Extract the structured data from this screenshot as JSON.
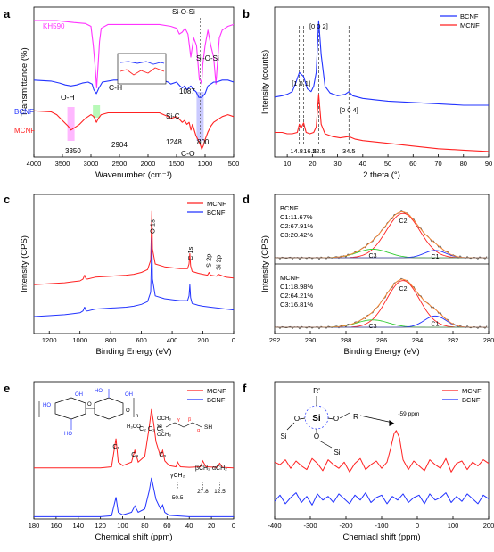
{
  "chart_data": [
    {
      "panel": "a",
      "type": "line",
      "xlabel": "Wavenumber (cm⁻¹)",
      "ylabel": "Transmittance (%)",
      "xlim": [
        4000,
        500
      ],
      "x_ticks": [
        4000,
        3500,
        3000,
        2500,
        2000,
        1500,
        1000,
        500
      ],
      "y_ticks": "none",
      "series": [
        {
          "name": "KH590",
          "color": "#ff33ff",
          "x": [
            4000,
            3600,
            3300,
            3100,
            3000,
            2960,
            2930,
            2900,
            2870,
            2850,
            2820,
            2700,
            2400,
            2100,
            1800,
            1600,
            1500,
            1450,
            1400,
            1350,
            1300,
            1250,
            1200,
            1150,
            1100,
            1080,
            1060,
            1040,
            1000,
            950,
            900,
            850,
            810,
            790,
            750,
            700,
            600,
            500
          ],
          "y": [
            93,
            93,
            92,
            91.5,
            90,
            80,
            70,
            58,
            72,
            82,
            89,
            91,
            91,
            91,
            91,
            90,
            89,
            86,
            87,
            89,
            86,
            74,
            84,
            80,
            62,
            62,
            60,
            70,
            80,
            88,
            80,
            74,
            60,
            68,
            84,
            88,
            90,
            91
          ]
        },
        {
          "name": "BCNF",
          "color": "#2233ff",
          "x": [
            4000,
            3700,
            3550,
            3450,
            3350,
            3250,
            3150,
            3050,
            2980,
            2950,
            2904,
            2860,
            2800,
            2600,
            2300,
            2000,
            1750,
            1650,
            1600,
            1500,
            1440,
            1400,
            1360,
            1320,
            1250,
            1200,
            1160,
            1110,
            1060,
            1030,
            1000,
            950,
            900,
            850,
            800,
            700,
            600,
            500
          ],
          "y": [
            62,
            61.5,
            60.5,
            59.5,
            59,
            59.5,
            60.5,
            61,
            60,
            57,
            55,
            58,
            61,
            62,
            62,
            62,
            62,
            61,
            60,
            61,
            59,
            58,
            59,
            57,
            59,
            57,
            56,
            53,
            53,
            54,
            55,
            59,
            60,
            61,
            61,
            62,
            62,
            61
          ]
        },
        {
          "name": "MCNF",
          "color": "#ff2222",
          "x": [
            4000,
            3700,
            3600,
            3500,
            3400,
            3350,
            3300,
            3200,
            3100,
            3000,
            2950,
            2904,
            2870,
            2820,
            2700,
            2400,
            2100,
            1800,
            1650,
            1600,
            1500,
            1430,
            1400,
            1360,
            1320,
            1280,
            1248,
            1220,
            1200,
            1160,
            1110,
            1080,
            1060,
            1030,
            1000,
            950,
            900,
            850,
            800,
            750,
            700,
            600,
            500
          ],
          "y": [
            46,
            45.5,
            44,
            41,
            38,
            36,
            37,
            39,
            42,
            44,
            43,
            40,
            42,
            44,
            45,
            45,
            45,
            45,
            43,
            42,
            43,
            41,
            40,
            41,
            39,
            40,
            36,
            39,
            37,
            33,
            30,
            28,
            26,
            28,
            31,
            35,
            38,
            40,
            41,
            42,
            43,
            44,
            43
          ]
        }
      ],
      "annotations": [
        "KH590",
        "BCNF",
        "MCNF",
        "O-H",
        "C-H",
        "Si-O-Si",
        "Si-O-Si",
        "Si-C",
        "C-O",
        "3350",
        "2904",
        "1248",
        "1087",
        "800"
      ],
      "legend": "inline labels",
      "highlight_bands": [
        {
          "center": 3350,
          "color": "#ff33ff"
        },
        {
          "center": 2904,
          "color": "#33ee33"
        },
        {
          "center": 1087,
          "color": "#6666ff"
        }
      ],
      "inset": "zoom of 1300-1000 region (BCNF, MCNF)"
    },
    {
      "panel": "b",
      "type": "line",
      "xlabel": "2 theta (°)",
      "ylabel": "Intensity (counts)",
      "xlim": [
        5,
        90
      ],
      "x_ticks": [
        10,
        20,
        30,
        40,
        50,
        60,
        70,
        80,
        90
      ],
      "y_ticks": "none",
      "series": [
        {
          "name": "BCNF",
          "color": "#2233ff",
          "x": [
            5,
            8,
            10,
            12,
            13.5,
            14.8,
            16.5,
            18,
            19.5,
            20.5,
            21.5,
            22.5,
            23.5,
            25,
            27,
            30,
            33,
            34.5,
            36,
            40,
            45,
            50,
            60,
            70,
            80,
            90
          ],
          "y": [
            44,
            45,
            46,
            48,
            55,
            62,
            59,
            50,
            48,
            52,
            62,
            100,
            75,
            52,
            47,
            45,
            46,
            48,
            45,
            43,
            42,
            41,
            40,
            39,
            38,
            38
          ]
        },
        {
          "name": "MCNF",
          "color": "#ff2222",
          "x": [
            5,
            8,
            10,
            12,
            14,
            14.8,
            15.5,
            16.5,
            17.5,
            19,
            20.5,
            21.5,
            22.5,
            23.5,
            25,
            28,
            31,
            34.5,
            37,
            40,
            45,
            50,
            60,
            70,
            80,
            90
          ],
          "y": [
            18,
            18,
            17,
            17,
            18,
            24,
            21,
            25,
            18,
            17,
            18,
            22,
            46,
            24,
            17,
            15,
            14,
            15,
            13,
            12,
            11,
            10,
            8,
            6,
            5,
            4
          ]
        }
      ],
      "annotations": [
        "[1 0 1]",
        "[0 0 2]",
        "[0 0 4]",
        "14.8",
        "16.5",
        "22.5",
        "34.5"
      ],
      "legend": "top-right"
    },
    {
      "panel": "c",
      "type": "line",
      "xlabel": "Binding Energy (eV)",
      "ylabel": "Intensity (CPS)",
      "xlim": [
        1300,
        0
      ],
      "x_ticks": [
        1200,
        1000,
        800,
        600,
        400,
        200,
        0
      ],
      "y_ticks": "none",
      "series": [
        {
          "name": "MCNF",
          "color": "#ff2222",
          "x": [
            1300,
            1200,
            1100,
            1050,
            1000,
            980,
            970,
            960,
            950,
            900,
            800,
            700,
            650,
            600,
            560,
            540,
            532,
            528,
            510,
            450,
            400,
            350,
            300,
            290,
            285,
            280,
            270,
            230,
            200,
            170,
            160,
            150,
            110,
            100,
            50,
            0
          ],
          "y": [
            22,
            23,
            24,
            25,
            26,
            28,
            32,
            28,
            28,
            30,
            31,
            32,
            33,
            35,
            38,
            48,
            100,
            60,
            44,
            41,
            40,
            39,
            39,
            44,
            55,
            42,
            36,
            34,
            33,
            32,
            35,
            32,
            31,
            33,
            30,
            29
          ]
        },
        {
          "name": "BCNF",
          "color": "#2233ff",
          "x": [
            1300,
            1200,
            1100,
            1050,
            1000,
            980,
            970,
            960,
            950,
            900,
            800,
            700,
            650,
            600,
            560,
            540,
            532,
            528,
            510,
            450,
            400,
            350,
            300,
            290,
            285,
            280,
            270,
            230,
            200,
            150,
            100,
            50,
            0
          ],
          "y": [
            -12,
            -11,
            -10,
            -9,
            -8,
            -6,
            -2,
            -6,
            -6,
            -4,
            -3,
            -2,
            -1,
            1,
            4,
            14,
            72,
            28,
            10,
            7,
            6,
            5,
            5,
            10,
            22,
            8,
            2,
            0,
            -1,
            -2,
            -3,
            -4,
            -5
          ]
        }
      ],
      "annotations": [
        "O 1s",
        "C 1s",
        "S 2p",
        "Si 2p"
      ],
      "legend": "top-right"
    },
    {
      "panel": "d",
      "type": "line",
      "xlabel": "Binding Energy (eV)",
      "ylabel": "Intensity (CPS)",
      "xlim": [
        292,
        280
      ],
      "x_ticks": [
        292,
        290,
        288,
        286,
        284,
        282,
        280
      ],
      "y_ticks": "none",
      "subpanels": [
        {
          "sample": "BCNF",
          "text": [
            "BCNF",
            "C1:11.67%",
            "C2:67.91%",
            "C3:20.42%"
          ],
          "components": [
            {
              "label": "C2",
              "center": 284.8,
              "height": 0.78,
              "width": 1.4,
              "color": "#ff2222"
            },
            {
              "label": "C3",
              "center": 286.5,
              "height": 0.15,
              "width": 1.3,
              "color": "#33cc33"
            },
            {
              "label": "C1",
              "center": 283.0,
              "height": 0.13,
              "width": 0.9,
              "color": "#2233ff"
            }
          ]
        },
        {
          "sample": "MCNF",
          "text": [
            "MCNF",
            "C1:18.98%",
            "C2:64.21%",
            "C3:16.81%"
          ],
          "components": [
            {
              "label": "C2",
              "center": 284.8,
              "height": 0.82,
              "width": 1.35,
              "color": "#ff2222"
            },
            {
              "label": "C3",
              "center": 286.5,
              "height": 0.13,
              "width": 1.3,
              "color": "#33cc33"
            },
            {
              "label": "C1",
              "center": 283.0,
              "height": 0.2,
              "width": 0.9,
              "color": "#2233ff"
            }
          ]
        }
      ],
      "colors": {
        "envelope": "#ff8833",
        "raw": "#444444"
      },
      "legend": "none"
    },
    {
      "panel": "e",
      "type": "line",
      "xlabel": "Chemical shift (ppm)",
      "ylabel": "",
      "xlim": [
        180,
        0
      ],
      "x_ticks": [
        180,
        160,
        140,
        120,
        100,
        80,
        60,
        40,
        20,
        0
      ],
      "y_ticks": "none",
      "series": [
        {
          "name": "MCNF",
          "color": "#ff2222",
          "x": [
            180,
            150,
            120,
            110,
            106,
            104,
            100,
            92,
            89,
            86,
            80,
            76,
            74,
            72,
            70,
            66,
            64,
            62,
            58,
            52,
            50.5,
            48,
            40,
            30,
            27.8,
            25,
            15,
            12.5,
            10,
            0
          ],
          "y": [
            0,
            0,
            0,
            2,
            50,
            10,
            4,
            10,
            30,
            10,
            20,
            70,
            100,
            75,
            45,
            20,
            30,
            12,
            4,
            2,
            10,
            2,
            1,
            2,
            12,
            2,
            1,
            8,
            1,
            0
          ]
        },
        {
          "name": "BCNF",
          "color": "#2233ff",
          "x": [
            180,
            150,
            120,
            110,
            106,
            104,
            100,
            92,
            89,
            86,
            80,
            76,
            74,
            72,
            70,
            66,
            64,
            62,
            58,
            40,
            0
          ],
          "y": [
            0,
            0,
            0,
            2,
            45,
            10,
            4,
            10,
            25,
            10,
            18,
            60,
            90,
            65,
            40,
            18,
            27,
            10,
            3,
            0,
            0
          ]
        }
      ],
      "annotations": [
        "C₁",
        "C₄",
        "C₂ C₃ C₅",
        "C₆",
        "γCH₂",
        "βCH₂",
        "αCH₂",
        "50.5",
        "27.8",
        "12.5",
        "SH",
        "OCH₃",
        "H₃CO",
        "Si",
        "γ",
        "β",
        "α",
        "HO",
        "OH",
        "O",
        "n"
      ],
      "legend": "top-right"
    },
    {
      "panel": "f",
      "type": "line",
      "xlabel": "Chemiacl shift (ppm)",
      "ylabel": "",
      "xlim": [
        -400,
        200
      ],
      "x_ticks": [
        -400,
        -300,
        -200,
        -100,
        0,
        100,
        200
      ],
      "y_ticks": "none",
      "series": [
        {
          "name": "MCNF",
          "color": "#ff2222",
          "x": [
            -400,
            -385,
            -370,
            -355,
            -340,
            -325,
            -310,
            -295,
            -280,
            -265,
            -250,
            -235,
            -220,
            -205,
            -190,
            -175,
            -160,
            -145,
            -130,
            -115,
            -100,
            -85,
            -75,
            -65,
            -59,
            -50,
            -40,
            -25,
            -10,
            5,
            20,
            35,
            50,
            65,
            80,
            95,
            110,
            125,
            140,
            155,
            170,
            185,
            200
          ],
          "y": [
            8,
            4,
            12,
            -2,
            10,
            2,
            -4,
            14,
            6,
            -6,
            12,
            4,
            -2,
            8,
            -8,
            6,
            14,
            -4,
            4,
            10,
            -2,
            8,
            30,
            55,
            60,
            48,
            12,
            -4,
            10,
            2,
            -6,
            12,
            4,
            -2,
            14,
            -8,
            6,
            10,
            -4,
            8,
            2,
            12,
            6
          ]
        },
        {
          "name": "BCNF",
          "color": "#2233ff",
          "x": [
            -400,
            -385,
            -370,
            -355,
            -340,
            -325,
            -310,
            -295,
            -280,
            -265,
            -250,
            -235,
            -220,
            -205,
            -190,
            -175,
            -160,
            -145,
            -130,
            -115,
            -100,
            -85,
            -70,
            -55,
            -40,
            -25,
            -10,
            5,
            20,
            35,
            50,
            65,
            80,
            95,
            110,
            125,
            140,
            155,
            170,
            185,
            200
          ],
          "y": [
            -56,
            -46,
            -60,
            -50,
            -42,
            -58,
            -48,
            -62,
            -44,
            -54,
            -48,
            -58,
            -44,
            -52,
            -60,
            -46,
            -54,
            -42,
            -58,
            -50,
            -46,
            -60,
            -48,
            -54,
            -44,
            -58,
            -50,
            -46,
            -60,
            -44,
            -54,
            -50,
            -42,
            -58,
            -48,
            -56,
            -44,
            -52,
            -60,
            -46,
            -52
          ]
        }
      ],
      "annotations": [
        "-59 ppm",
        "R'",
        "Si",
        "O",
        "R"
      ],
      "legend": "top-right"
    }
  ],
  "panel_labels": [
    "a",
    "b",
    "c",
    "d",
    "e",
    "f"
  ]
}
